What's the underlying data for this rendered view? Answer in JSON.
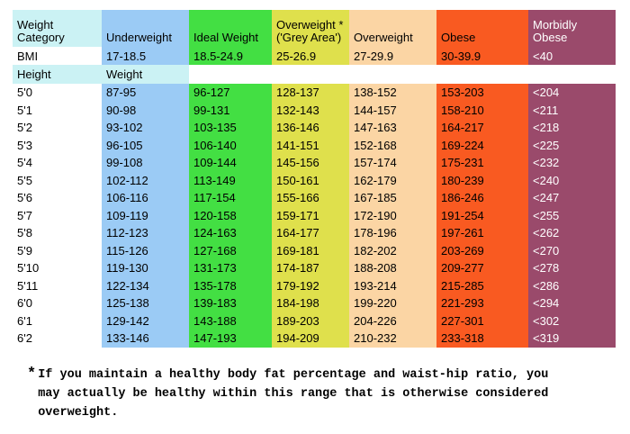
{
  "colors": {
    "page_background": "#FFFFFF",
    "header_cyan": "#CBF2F4",
    "underweight_blue": "#9BCBF5",
    "ideal_green": "#43DF43",
    "grey_area_yellow": "#DFE04C",
    "overweight_peach": "#FBD5A4",
    "obese_orange": "#F95A21",
    "morbid_maroon": "#9A4A6B",
    "default_text": "#000000",
    "morbid_text": "#FFFFFF"
  },
  "chart_data": {
    "type": "table",
    "columns": [
      {
        "key": "weight-category",
        "label": "Weight\nCategory",
        "bg": "#CBF2F4",
        "text": "#000000"
      },
      {
        "key": "underweight",
        "label": "Underweight",
        "bg": "#9BCBF5",
        "text": "#000000"
      },
      {
        "key": "ideal-weight",
        "label": "Ideal Weight",
        "bg": "#43DF43",
        "text": "#000000"
      },
      {
        "key": "overweight-grey-area",
        "label": "Overweight *\n('Grey Area')",
        "bg": "#DFE04C",
        "text": "#000000"
      },
      {
        "key": "overweight",
        "label": "Overweight",
        "bg": "#FBD5A4",
        "text": "#000000"
      },
      {
        "key": "obese",
        "label": "Obese",
        "bg": "#F95A21",
        "text": "#000000"
      },
      {
        "key": "morbidly-obese",
        "label": "Morbidly\nObese",
        "bg": "#9A4A6B",
        "text": "#FFFFFF"
      }
    ],
    "bmi_row": [
      "BMI",
      "17-18.5",
      "18.5-24.9",
      "25-26.9",
      "27-29.9",
      "30-39.9",
      "<40"
    ],
    "subheader_row": [
      "Height",
      "Weight",
      "",
      "",
      "",
      "",
      ""
    ],
    "rows": [
      [
        "5'0",
        "87-95",
        "96-127",
        "128-137",
        "138-152",
        "153-203",
        "<204"
      ],
      [
        "5'1",
        "90-98",
        "99-131",
        "132-143",
        "144-157",
        "158-210",
        "<211"
      ],
      [
        "5'2",
        "93-102",
        "103-135",
        "136-146",
        "147-163",
        "164-217",
        "<218"
      ],
      [
        "5'3",
        "96-105",
        "106-140",
        "141-151",
        "152-168",
        "169-224",
        "<225"
      ],
      [
        "5'4",
        "99-108",
        "109-144",
        "145-156",
        "157-174",
        "175-231",
        "<232"
      ],
      [
        "5'5",
        "102-112",
        "113-149",
        "150-161",
        "162-179",
        "180-239",
        "<240"
      ],
      [
        "5'6",
        "106-116",
        "117-154",
        "155-166",
        "167-185",
        "186-246",
        "<247"
      ],
      [
        "5'7",
        "109-119",
        "120-158",
        "159-171",
        "172-190",
        "191-254",
        "<255"
      ],
      [
        "5'8",
        "112-123",
        "124-163",
        "164-177",
        "178-196",
        "197-261",
        "<262"
      ],
      [
        "5'9",
        "115-126",
        "127-168",
        "169-181",
        "182-202",
        "203-269",
        "<270"
      ],
      [
        "5'10",
        "119-130",
        "131-173",
        "174-187",
        "188-208",
        "209-277",
        "<278"
      ],
      [
        "5'11",
        "122-134",
        "135-178",
        "179-192",
        "193-214",
        "215-285",
        "<286"
      ],
      [
        "6'0",
        "125-138",
        "139-183",
        "184-198",
        "199-220",
        "221-293",
        "<294"
      ],
      [
        "6'1",
        "129-142",
        "143-188",
        "189-203",
        "204-226",
        "227-301",
        "<302"
      ],
      [
        "6'2",
        "133-146",
        "147-193",
        "194-209",
        "210-232",
        "233-318",
        "<319"
      ]
    ]
  },
  "footnote": {
    "marker": "*",
    "text": "If you maintain a healthy body fat percentage and waist-hip ratio, you\nmay actually be healthy within this range that is otherwise considered\noverweight."
  }
}
